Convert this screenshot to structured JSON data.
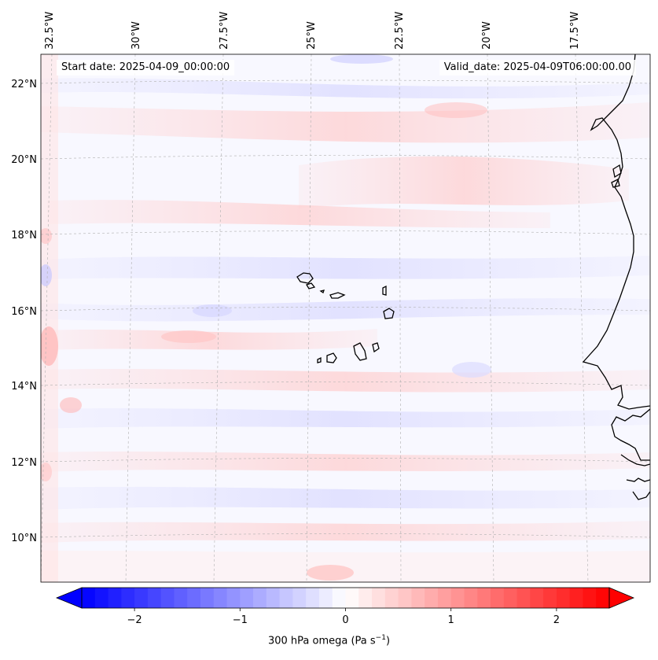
{
  "map": {
    "start_date": "Start date: 2025-04-09_00:00:00",
    "valid_date": "Valid_date: 2025-04-09T06:00:00.00",
    "lon_labels": [
      "32.5°W",
      "30°W",
      "27.5°W",
      "25°W",
      "22.5°W",
      "20°W",
      "17.5°W"
    ],
    "lat_labels": [
      "22°N",
      "20°N",
      "18°N",
      "16°N",
      "14°N",
      "12°N",
      "10°N"
    ],
    "gridlines": "on",
    "colorbar": {
      "label": "300 hPa omega (Pa s",
      "label_sup": "−1",
      "label_end": ")",
      "ticks": [
        "−2",
        "−1",
        "0",
        "1",
        "2"
      ],
      "tick_values": [
        -2,
        -1,
        0,
        1,
        2
      ],
      "range": [
        -2.5,
        2.5
      ],
      "colormap": "bwr",
      "low_color": "#0000ff",
      "mid_color": "#ffffff",
      "high_color": "#ff0000"
    }
  }
}
